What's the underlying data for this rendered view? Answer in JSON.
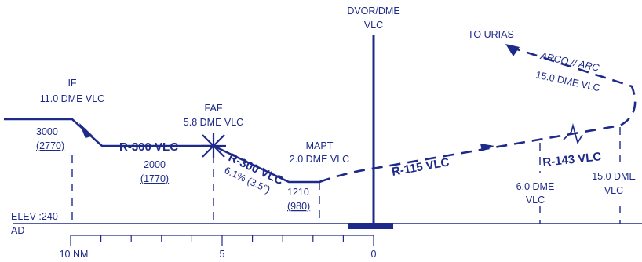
{
  "colors": {
    "ink": "#1e2a8a",
    "background": "#ffffff"
  },
  "labels": {
    "dvor_line1": "DVOR/DME",
    "dvor_line2": "VLC",
    "to_urias": "TO URIAS",
    "arc_line1": "ARCO // ARC",
    "arc_line2": "15.0 DME VLC",
    "if_line1": "IF",
    "if_line2": "11.0 DME VLC",
    "if_alt": "3000",
    "if_alt_ref": "(2770)",
    "faf_line1": "FAF",
    "faf_line2": "5.8 DME VLC",
    "seg1_radial": "R-300 VLC",
    "seg1_alt": "2000",
    "seg1_alt_ref": "(1770)",
    "final_radial": "R-300 VLC",
    "gradient": "6.1% (3.5°)",
    "mapt_line1": "MAPT",
    "mapt_line2": "2.0 DME VLC",
    "mapt_alt": "1210",
    "mapt_alt_ref": "(980)",
    "missed_radial": "R-115 VLC",
    "r143": "R-143 VLC",
    "dme6_line1": "6.0 DME",
    "dme6_line2": "VLC",
    "dme15_line1": "15.0 DME",
    "dme15_line2": "VLC",
    "elev": "ELEV :240",
    "ad": "AD",
    "scale_10": "10 NM",
    "scale_5": "5",
    "scale_0": "0"
  }
}
